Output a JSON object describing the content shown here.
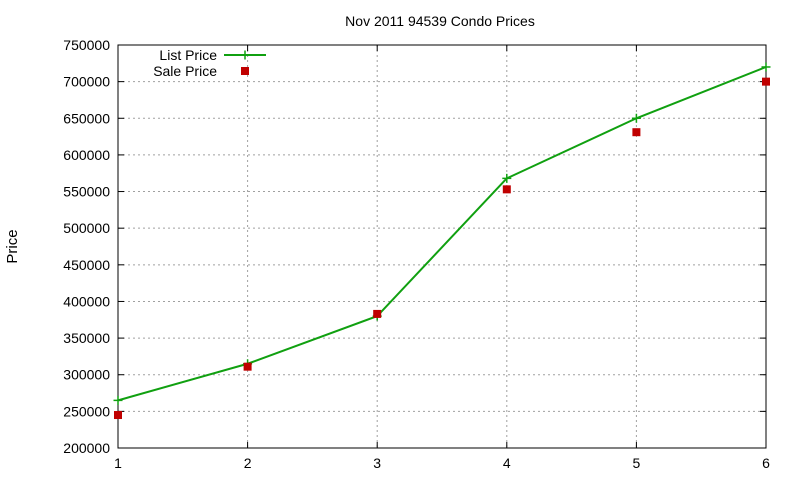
{
  "chart_data": {
    "type": "line",
    "title": "Nov 2011 94539 Condo Prices",
    "xlabel": "",
    "ylabel": "Price",
    "x": [
      1,
      2,
      3,
      4,
      5,
      6
    ],
    "xlim": [
      1,
      6
    ],
    "ylim": [
      200000,
      750000
    ],
    "xticks": [
      "1",
      "2",
      "3",
      "4",
      "5",
      "6"
    ],
    "yticks": [
      "200000",
      "250000",
      "300000",
      "350000",
      "400000",
      "450000",
      "500000",
      "550000",
      "600000",
      "650000",
      "700000",
      "750000"
    ],
    "grid": true,
    "legend_position": "top-left",
    "series": [
      {
        "name": "List Price",
        "style": "linespoints",
        "marker": "plus",
        "color": "#10a010",
        "values": [
          265000,
          315000,
          380000,
          568000,
          650000,
          720000
        ]
      },
      {
        "name": "Sale Price",
        "style": "points",
        "marker": "square",
        "color": "#c00000",
        "values": [
          245000,
          311000,
          383000,
          553000,
          631000,
          700000
        ]
      }
    ]
  }
}
